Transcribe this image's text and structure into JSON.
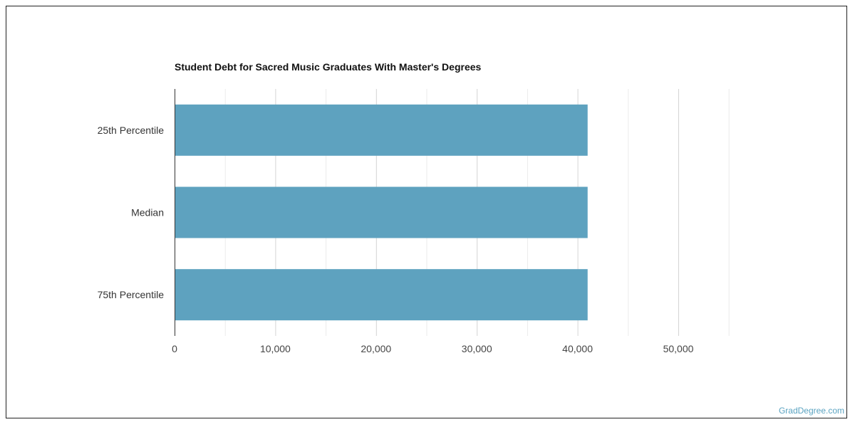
{
  "chart_data": {
    "type": "bar",
    "orientation": "horizontal",
    "title": "Student Debt for Sacred Music Graduates With Master's Degrees",
    "categories": [
      "25th Percentile",
      "Median",
      "75th Percentile"
    ],
    "values": [
      41000,
      41000,
      41000
    ],
    "xlim": [
      0,
      55000
    ],
    "x_ticks": [
      0,
      10000,
      20000,
      30000,
      40000,
      50000
    ],
    "x_tick_labels": [
      "0",
      "10,000",
      "20,000",
      "30,000",
      "40,000",
      "50,000"
    ],
    "grid": true,
    "bar_color": "#5ea2bf",
    "xlabel": "",
    "ylabel": ""
  },
  "watermark": "GradDegree.com"
}
